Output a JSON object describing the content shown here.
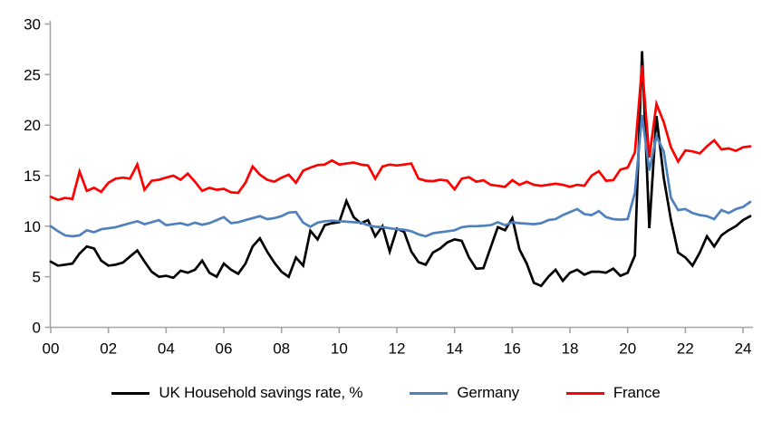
{
  "chart_data": {
    "type": "line",
    "title": "",
    "xlabel": "",
    "ylabel": "",
    "grid": false,
    "legend_position": "bottom",
    "axis_color": "#A6A6A6",
    "background_color": "#FFFFFF",
    "x_axis": {
      "unit": "year, quarterly points",
      "start_year": 2000,
      "step_years": 0.25,
      "n_points": 98,
      "tick_years": [
        2000,
        2002,
        2004,
        2006,
        2008,
        2010,
        2012,
        2014,
        2016,
        2018,
        2020,
        2022,
        2024
      ],
      "tick_labels": [
        "00",
        "02",
        "04",
        "06",
        "08",
        "10",
        "12",
        "14",
        "16",
        "18",
        "20",
        "22",
        "24"
      ]
    },
    "y_axis": {
      "min": 0,
      "max": 30,
      "ticks": [
        0,
        5,
        10,
        15,
        20,
        25,
        30
      ]
    },
    "series": [
      {
        "key": "uk-household-savings-rate",
        "name": "UK Household savings rate, %",
        "color": "#000000",
        "values": [
          6.5,
          6.1,
          6.2,
          6.3,
          7.3,
          8.0,
          7.8,
          6.6,
          6.1,
          6.2,
          6.4,
          7.0,
          7.6,
          6.5,
          5.5,
          5.0,
          5.1,
          4.9,
          5.6,
          5.4,
          5.7,
          6.6,
          5.4,
          5.0,
          6.3,
          5.7,
          5.3,
          6.3,
          8.0,
          8.8,
          7.5,
          6.4,
          5.5,
          5.0,
          6.9,
          6.1,
          9.55,
          8.7,
          10.1,
          10.3,
          10.4,
          12.5,
          10.9,
          10.3,
          10.6,
          9.0,
          10.0,
          7.5,
          9.75,
          9.45,
          7.5,
          6.45,
          6.2,
          7.4,
          7.8,
          8.4,
          8.7,
          8.55,
          6.9,
          5.8,
          5.85,
          7.9,
          9.9,
          9.6,
          10.8,
          7.7,
          6.3,
          4.4,
          4.1,
          5.0,
          5.7,
          4.6,
          5.4,
          5.7,
          5.2,
          5.5,
          5.5,
          5.4,
          5.8,
          5.1,
          5.4,
          7.1,
          27.3,
          9.8,
          20.9,
          14.8,
          10.6,
          7.4,
          6.9,
          6.1,
          7.4,
          9.0,
          8.0,
          9.1,
          9.6,
          10.0,
          10.6,
          11.0
        ]
      },
      {
        "key": "germany",
        "name": "Germany",
        "color": "#4E81BD",
        "values": [
          10.0,
          9.5,
          9.1,
          9.0,
          9.1,
          9.6,
          9.4,
          9.7,
          9.8,
          9.9,
          10.1,
          10.3,
          10.5,
          10.2,
          10.4,
          10.6,
          10.1,
          10.2,
          10.3,
          10.1,
          10.35,
          10.15,
          10.3,
          10.6,
          10.9,
          10.3,
          10.4,
          10.6,
          10.8,
          11.0,
          10.7,
          10.8,
          11.0,
          11.35,
          11.4,
          10.35,
          9.95,
          10.35,
          10.5,
          10.55,
          10.5,
          10.45,
          10.4,
          10.35,
          10.1,
          9.95,
          9.9,
          9.8,
          9.7,
          9.65,
          9.5,
          9.2,
          9.0,
          9.3,
          9.4,
          9.5,
          9.6,
          9.9,
          10.0,
          10.0,
          10.05,
          10.1,
          10.4,
          10.1,
          10.4,
          10.3,
          10.25,
          10.2,
          10.3,
          10.6,
          10.7,
          11.1,
          11.4,
          11.7,
          11.2,
          11.1,
          11.5,
          10.9,
          10.7,
          10.65,
          10.7,
          13.3,
          21.0,
          15.5,
          18.9,
          17.4,
          12.8,
          11.6,
          11.7,
          11.3,
          11.1,
          11.0,
          10.7,
          11.6,
          11.3,
          11.7,
          11.9,
          12.4
        ]
      },
      {
        "key": "france",
        "name": "France",
        "color": "#FE0000",
        "values": [
          12.9,
          12.6,
          12.8,
          12.7,
          15.4,
          13.5,
          13.8,
          13.4,
          14.3,
          14.7,
          14.8,
          14.7,
          16.1,
          13.6,
          14.5,
          14.6,
          14.8,
          15.0,
          14.6,
          15.2,
          14.4,
          13.5,
          13.8,
          13.6,
          13.7,
          13.35,
          13.3,
          14.3,
          15.9,
          15.1,
          14.6,
          14.4,
          14.8,
          15.1,
          14.3,
          15.5,
          15.8,
          16.05,
          16.1,
          16.5,
          16.1,
          16.2,
          16.3,
          16.1,
          16.0,
          14.7,
          15.9,
          16.1,
          16.0,
          16.1,
          16.2,
          14.7,
          14.5,
          14.45,
          14.6,
          14.5,
          13.65,
          14.7,
          14.85,
          14.4,
          14.55,
          14.1,
          14.0,
          13.9,
          14.55,
          14.1,
          14.4,
          14.1,
          14.0,
          14.1,
          14.2,
          14.1,
          13.9,
          14.1,
          14.0,
          15.0,
          15.45,
          14.5,
          14.55,
          15.6,
          15.8,
          17.3,
          25.9,
          16.8,
          22.1,
          20.3,
          17.8,
          16.4,
          17.5,
          17.4,
          17.2,
          17.9,
          18.5,
          17.6,
          17.7,
          17.45,
          17.8,
          17.9
        ]
      }
    ]
  }
}
